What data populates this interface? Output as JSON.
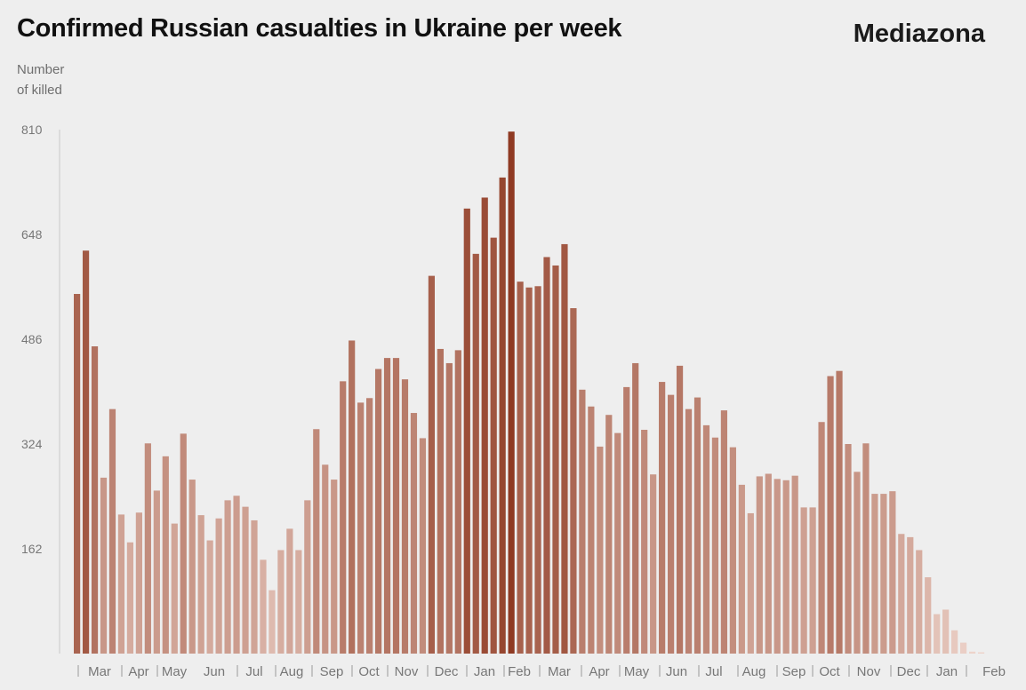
{
  "header": {
    "title": "Confirmed Russian casualties in Ukraine per week",
    "brand": "Mediazona",
    "ylabel_line1": "Number",
    "ylabel_line2": "of killed"
  },
  "colors": {
    "background": "#eeeeee",
    "bar_dark": "#8f3a22",
    "bar_light": "#eed4cb",
    "axis_text": "#777777"
  },
  "chart_data": {
    "type": "bar",
    "title": "Confirmed Russian casualties in Ukraine per week",
    "ylabel": "Number of killed",
    "xlabel": "",
    "ylim": [
      0,
      810
    ],
    "yticks": [
      162,
      324,
      486,
      648,
      810
    ],
    "grid": false,
    "month_labels": [
      "Mar",
      "Apr",
      "May",
      "Jun",
      "Jul",
      "Aug",
      "Sep",
      "Oct",
      "Nov",
      "Dec",
      "Jan",
      "Feb",
      "Mar",
      "Apr",
      "May",
      "Jun",
      "Jul",
      "Aug",
      "Sep",
      "Oct",
      "Nov",
      "Dec",
      "Jan",
      "Feb"
    ],
    "values": [
      556,
      623,
      475,
      272,
      378,
      215,
      172,
      218,
      325,
      252,
      305,
      201,
      340,
      269,
      214,
      175,
      209,
      237,
      244,
      227,
      206,
      145,
      98,
      160,
      193,
      160,
      237,
      347,
      292,
      269,
      421,
      484,
      388,
      395,
      440,
      457,
      457,
      424,
      372,
      333,
      584,
      471,
      449,
      469,
      688,
      618,
      705,
      643,
      736,
      807,
      575,
      566,
      568,
      613,
      600,
      633,
      534,
      408,
      382,
      320,
      369,
      341,
      412,
      449,
      346,
      277,
      420,
      400,
      445,
      378,
      396,
      353,
      334,
      376,
      319,
      261,
      217,
      274,
      278,
      270,
      268,
      275,
      226,
      226,
      358,
      429,
      437,
      324,
      281,
      325,
      247,
      247,
      251,
      185,
      180,
      160,
      118,
      61,
      68,
      36,
      17,
      3,
      2
    ]
  }
}
